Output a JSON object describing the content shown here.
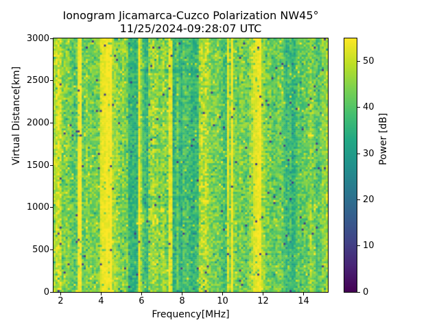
{
  "chart_data": {
    "type": "heatmap",
    "title": "Ionogram Jicamarca-Cuzco Polarization NW45°",
    "subtitle": "11/25/2024-09:28:07 UTC",
    "xlabel": "Frequency[MHz]",
    "ylabel": "Virtual Distance[km]",
    "xlim": [
      1.65,
      15.2
    ],
    "ylim": [
      0,
      3000
    ],
    "xticks": [
      2,
      4,
      6,
      8,
      10,
      12,
      14
    ],
    "yticks": [
      0,
      500,
      1000,
      1500,
      2000,
      2500,
      3000
    ],
    "grid": false,
    "legend": "none",
    "colorbar": {
      "label": "Power [dB]",
      "vmin": 0,
      "vmax": 55,
      "ticks": [
        0,
        10,
        20,
        30,
        40,
        50
      ],
      "colormap": "viridis",
      "colormap_stops": [
        [
          0.0,
          "#440154"
        ],
        [
          0.1,
          "#482475"
        ],
        [
          0.2,
          "#414487"
        ],
        [
          0.3,
          "#355f8d"
        ],
        [
          0.4,
          "#2a788e"
        ],
        [
          0.5,
          "#21918c"
        ],
        [
          0.6,
          "#22a884"
        ],
        [
          0.7,
          "#44bf70"
        ],
        [
          0.8,
          "#7ad151"
        ],
        [
          0.9,
          "#bddf26"
        ],
        [
          1.0,
          "#fde725"
        ]
      ]
    },
    "noise": {
      "seed": 1337,
      "bins_x": 136,
      "bins_y": 124,
      "spike_up_prob": 0.035,
      "spike_up_dB": 9,
      "spike_down_prob": 0.03,
      "spike_down_dB": 11,
      "dark_dot_prob": 0.008,
      "dark_dot_value": 10,
      "column_jitter_dB": 4
    },
    "frequency_bands_dB": [
      [
        1.65,
        1.8,
        49,
        5
      ],
      [
        1.8,
        2.1,
        46,
        6
      ],
      [
        2.1,
        2.3,
        44,
        6
      ],
      [
        2.3,
        2.7,
        42,
        6
      ],
      [
        2.7,
        2.87,
        44,
        6
      ],
      [
        2.87,
        3.03,
        54,
        2
      ],
      [
        3.03,
        3.6,
        43,
        6
      ],
      [
        3.6,
        3.95,
        45,
        6
      ],
      [
        3.95,
        4.5,
        54,
        2
      ],
      [
        4.5,
        4.8,
        47,
        5
      ],
      [
        4.8,
        5.35,
        44,
        6
      ],
      [
        5.35,
        5.82,
        36,
        5
      ],
      [
        5.82,
        5.92,
        54,
        2
      ],
      [
        5.92,
        6.0,
        44,
        5
      ],
      [
        6.0,
        6.06,
        51,
        3
      ],
      [
        6.06,
        6.35,
        37,
        5
      ],
      [
        6.35,
        7.3,
        44,
        6
      ],
      [
        7.3,
        7.38,
        54,
        2
      ],
      [
        7.38,
        7.42,
        46,
        4
      ],
      [
        7.42,
        7.5,
        54,
        2
      ],
      [
        7.5,
        8.8,
        37,
        5
      ],
      [
        8.8,
        9.35,
        48,
        6
      ],
      [
        9.35,
        9.9,
        43,
        6
      ],
      [
        9.9,
        10.25,
        39,
        5
      ],
      [
        10.25,
        10.33,
        54,
        2
      ],
      [
        10.33,
        10.4,
        44,
        4
      ],
      [
        10.4,
        10.48,
        54,
        2
      ],
      [
        10.48,
        11.3,
        43,
        6
      ],
      [
        11.3,
        11.55,
        48,
        5
      ],
      [
        11.55,
        11.95,
        54,
        2
      ],
      [
        11.95,
        12.15,
        48,
        5
      ],
      [
        12.15,
        13.0,
        42,
        6
      ],
      [
        13.0,
        13.7,
        37,
        5
      ],
      [
        13.7,
        14.2,
        41,
        6
      ],
      [
        14.2,
        14.55,
        45,
        6
      ],
      [
        14.55,
        14.95,
        41,
        6
      ],
      [
        14.95,
        15.2,
        46,
        5
      ]
    ],
    "thin_lines_dB": [
      [
        1.95,
        4
      ],
      [
        5.05,
        3
      ],
      [
        6.45,
        3
      ],
      [
        6.6,
        3
      ],
      [
        6.75,
        3
      ],
      [
        6.95,
        3
      ],
      [
        7.1,
        3
      ],
      [
        7.8,
        4
      ],
      [
        8.05,
        4
      ],
      [
        8.3,
        3
      ]
    ],
    "features": {
      "echo_blob": {
        "freq_MHz": [
          5.7,
          6.8
        ],
        "range_km": [
          810,
          930
        ],
        "boost_dB": 7
      },
      "echo_layer": {
        "freq_MHz": [
          5.7,
          7.6
        ],
        "range_km": [
          950,
          1000
        ],
        "boost_dB": 5
      },
      "range_gates": {
        "freq_MHz": [
          6.3,
          8.8
        ],
        "km_start": 500,
        "km_end": 2900,
        "km_step": 300,
        "km_width": 30,
        "delta_dB": -3.5
      }
    }
  }
}
